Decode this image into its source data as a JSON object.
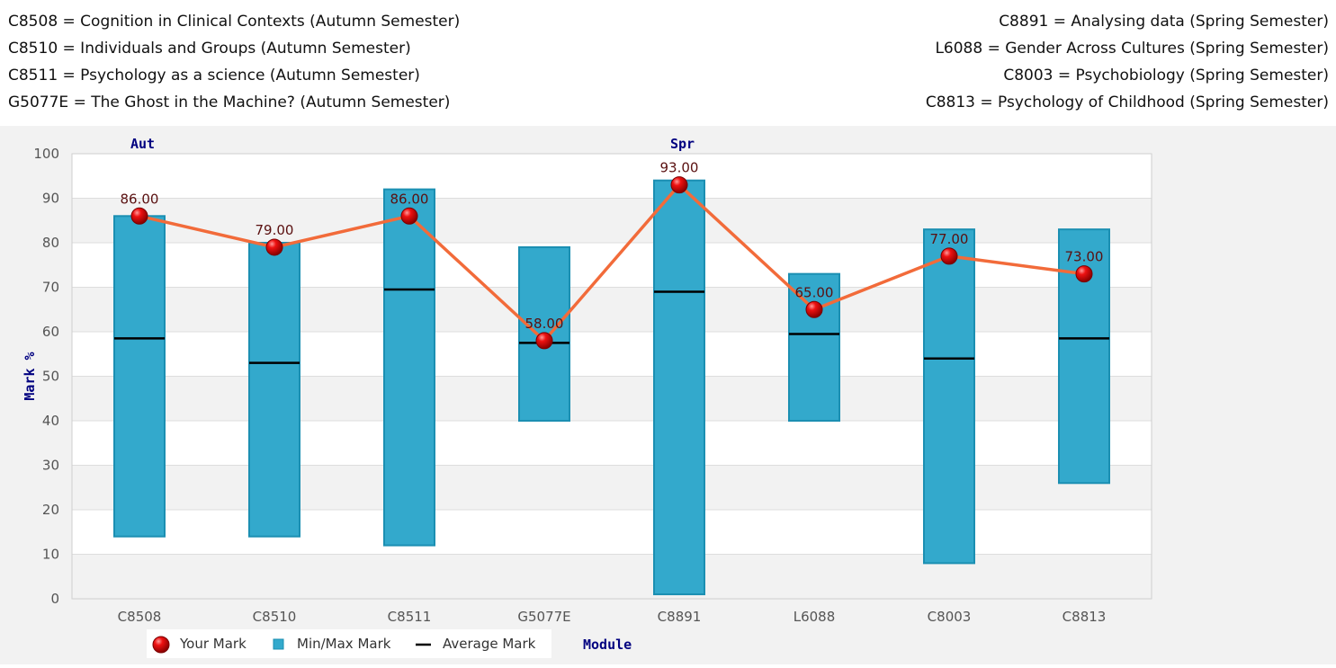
{
  "module_key": {
    "left": [
      "C8508 = Cognition in Clinical Contexts (Autumn Semester)",
      "C8510 = Individuals and Groups (Autumn Semester)",
      "C8511 = Psychology as a science (Autumn Semester)",
      "G5077E = The Ghost in the Machine? (Autumn Semester)"
    ],
    "right": [
      "C8891 = Analysing data (Spring Semester)",
      "L6088 = Gender Across Cultures (Spring Semester)",
      "C8003 = Psychobiology (Spring Semester)",
      "C8813 = Psychology of Childhood (Spring Semester)"
    ]
  },
  "chart_data": {
    "type": "bar",
    "categories": [
      "C8508",
      "C8510",
      "C8511",
      "G5077E",
      "C8891",
      "L6088",
      "C8003",
      "C8813"
    ],
    "min_mark": [
      14,
      14,
      12,
      40,
      1,
      40,
      8,
      26
    ],
    "max_mark": [
      86,
      80,
      92,
      79,
      94,
      73,
      83,
      83
    ],
    "average_mark": [
      58.5,
      53,
      69.5,
      57.5,
      69,
      59.5,
      54,
      58.5
    ],
    "your_mark": [
      86,
      79,
      86,
      58,
      93,
      65,
      77,
      73
    ],
    "your_mark_labels": [
      "86.00",
      "79.00",
      "86.00",
      "58.00",
      "93.00",
      "65.00",
      "77.00",
      "73.00"
    ],
    "ylabel": "Mark %",
    "xlabel": "Module",
    "ylim": [
      0,
      100
    ],
    "yticks": [
      0,
      10,
      20,
      30,
      40,
      50,
      60,
      70,
      80,
      90,
      100
    ],
    "semester_markers": [
      {
        "label": "Aut",
        "category": "C8508"
      },
      {
        "label": "Spr",
        "category": "C8891"
      }
    ],
    "legend": [
      "Your Mark",
      "Min/Max Mark",
      "Average Mark"
    ],
    "legend_position": "bottom",
    "grid": "horizontal alternating bands",
    "colors": {
      "bar_fill": "#33a9cc",
      "bar_stroke": "#1b8fb2",
      "average_line": "#000000",
      "your_mark_line": "#f26b3a",
      "your_mark_point": "#dd0000",
      "value_label": "#5a1010",
      "axis_title": "#000080",
      "band_light": "#ffffff",
      "band_dark": "#f2f2f2"
    }
  }
}
